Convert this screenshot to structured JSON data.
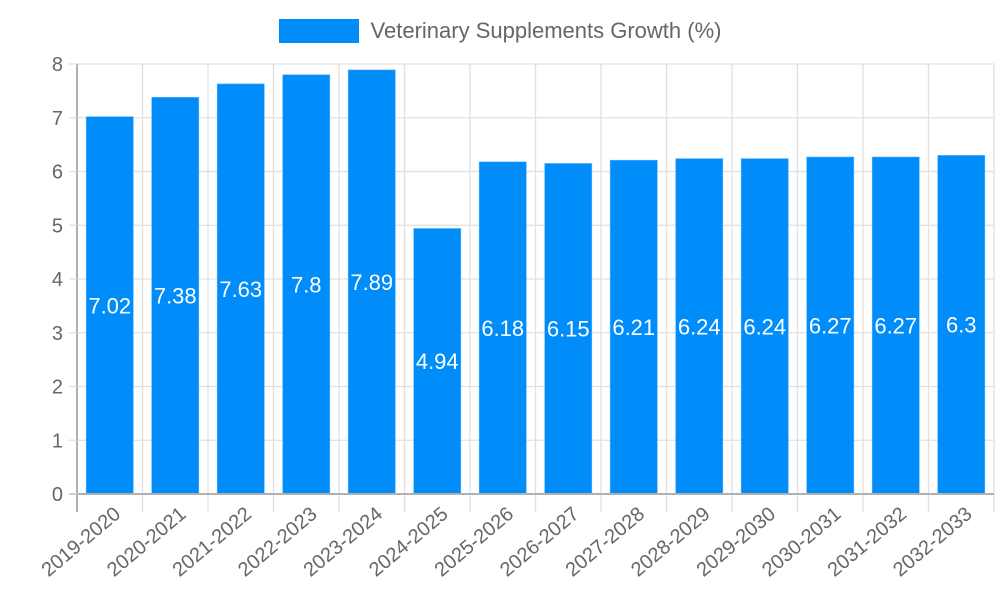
{
  "legend": {
    "label": "Veterinary Supplements Growth (%)",
    "color": "#008cf9"
  },
  "colors": {
    "bar": "#008cf9",
    "grid": "#e0e0e0",
    "axis": "#b0b0b0",
    "text": "#666666",
    "bar_label": "#ffffff"
  },
  "chart_data": {
    "type": "bar",
    "title": "",
    "xlabel": "",
    "ylabel": "",
    "legend": [
      "Veterinary Supplements Growth (%)"
    ],
    "legend_position": "top",
    "grid": true,
    "ylim": [
      0,
      8
    ],
    "yticks": [
      0,
      1,
      2,
      3,
      4,
      5,
      6,
      7,
      8
    ],
    "categories": [
      "2019-2020",
      "2020-2021",
      "2021-2022",
      "2022-2023",
      "2023-2024",
      "2024-2025",
      "2025-2026",
      "2026-2027",
      "2027-2028",
      "2028-2029",
      "2029-2030",
      "2030-2031",
      "2031-2032",
      "2032-2033"
    ],
    "series": [
      {
        "name": "Veterinary Supplements Growth (%)",
        "values": [
          7.02,
          7.38,
          7.63,
          7.8,
          7.89,
          4.94,
          6.18,
          6.15,
          6.21,
          6.24,
          6.24,
          6.27,
          6.27,
          6.3
        ]
      }
    ],
    "data_labels": [
      "7.02",
      "7.38",
      "7.63",
      "7.8",
      "7.89",
      "4.94",
      "6.18",
      "6.15",
      "6.21",
      "6.24",
      "6.24",
      "6.27",
      "6.27",
      "6.3"
    ]
  }
}
